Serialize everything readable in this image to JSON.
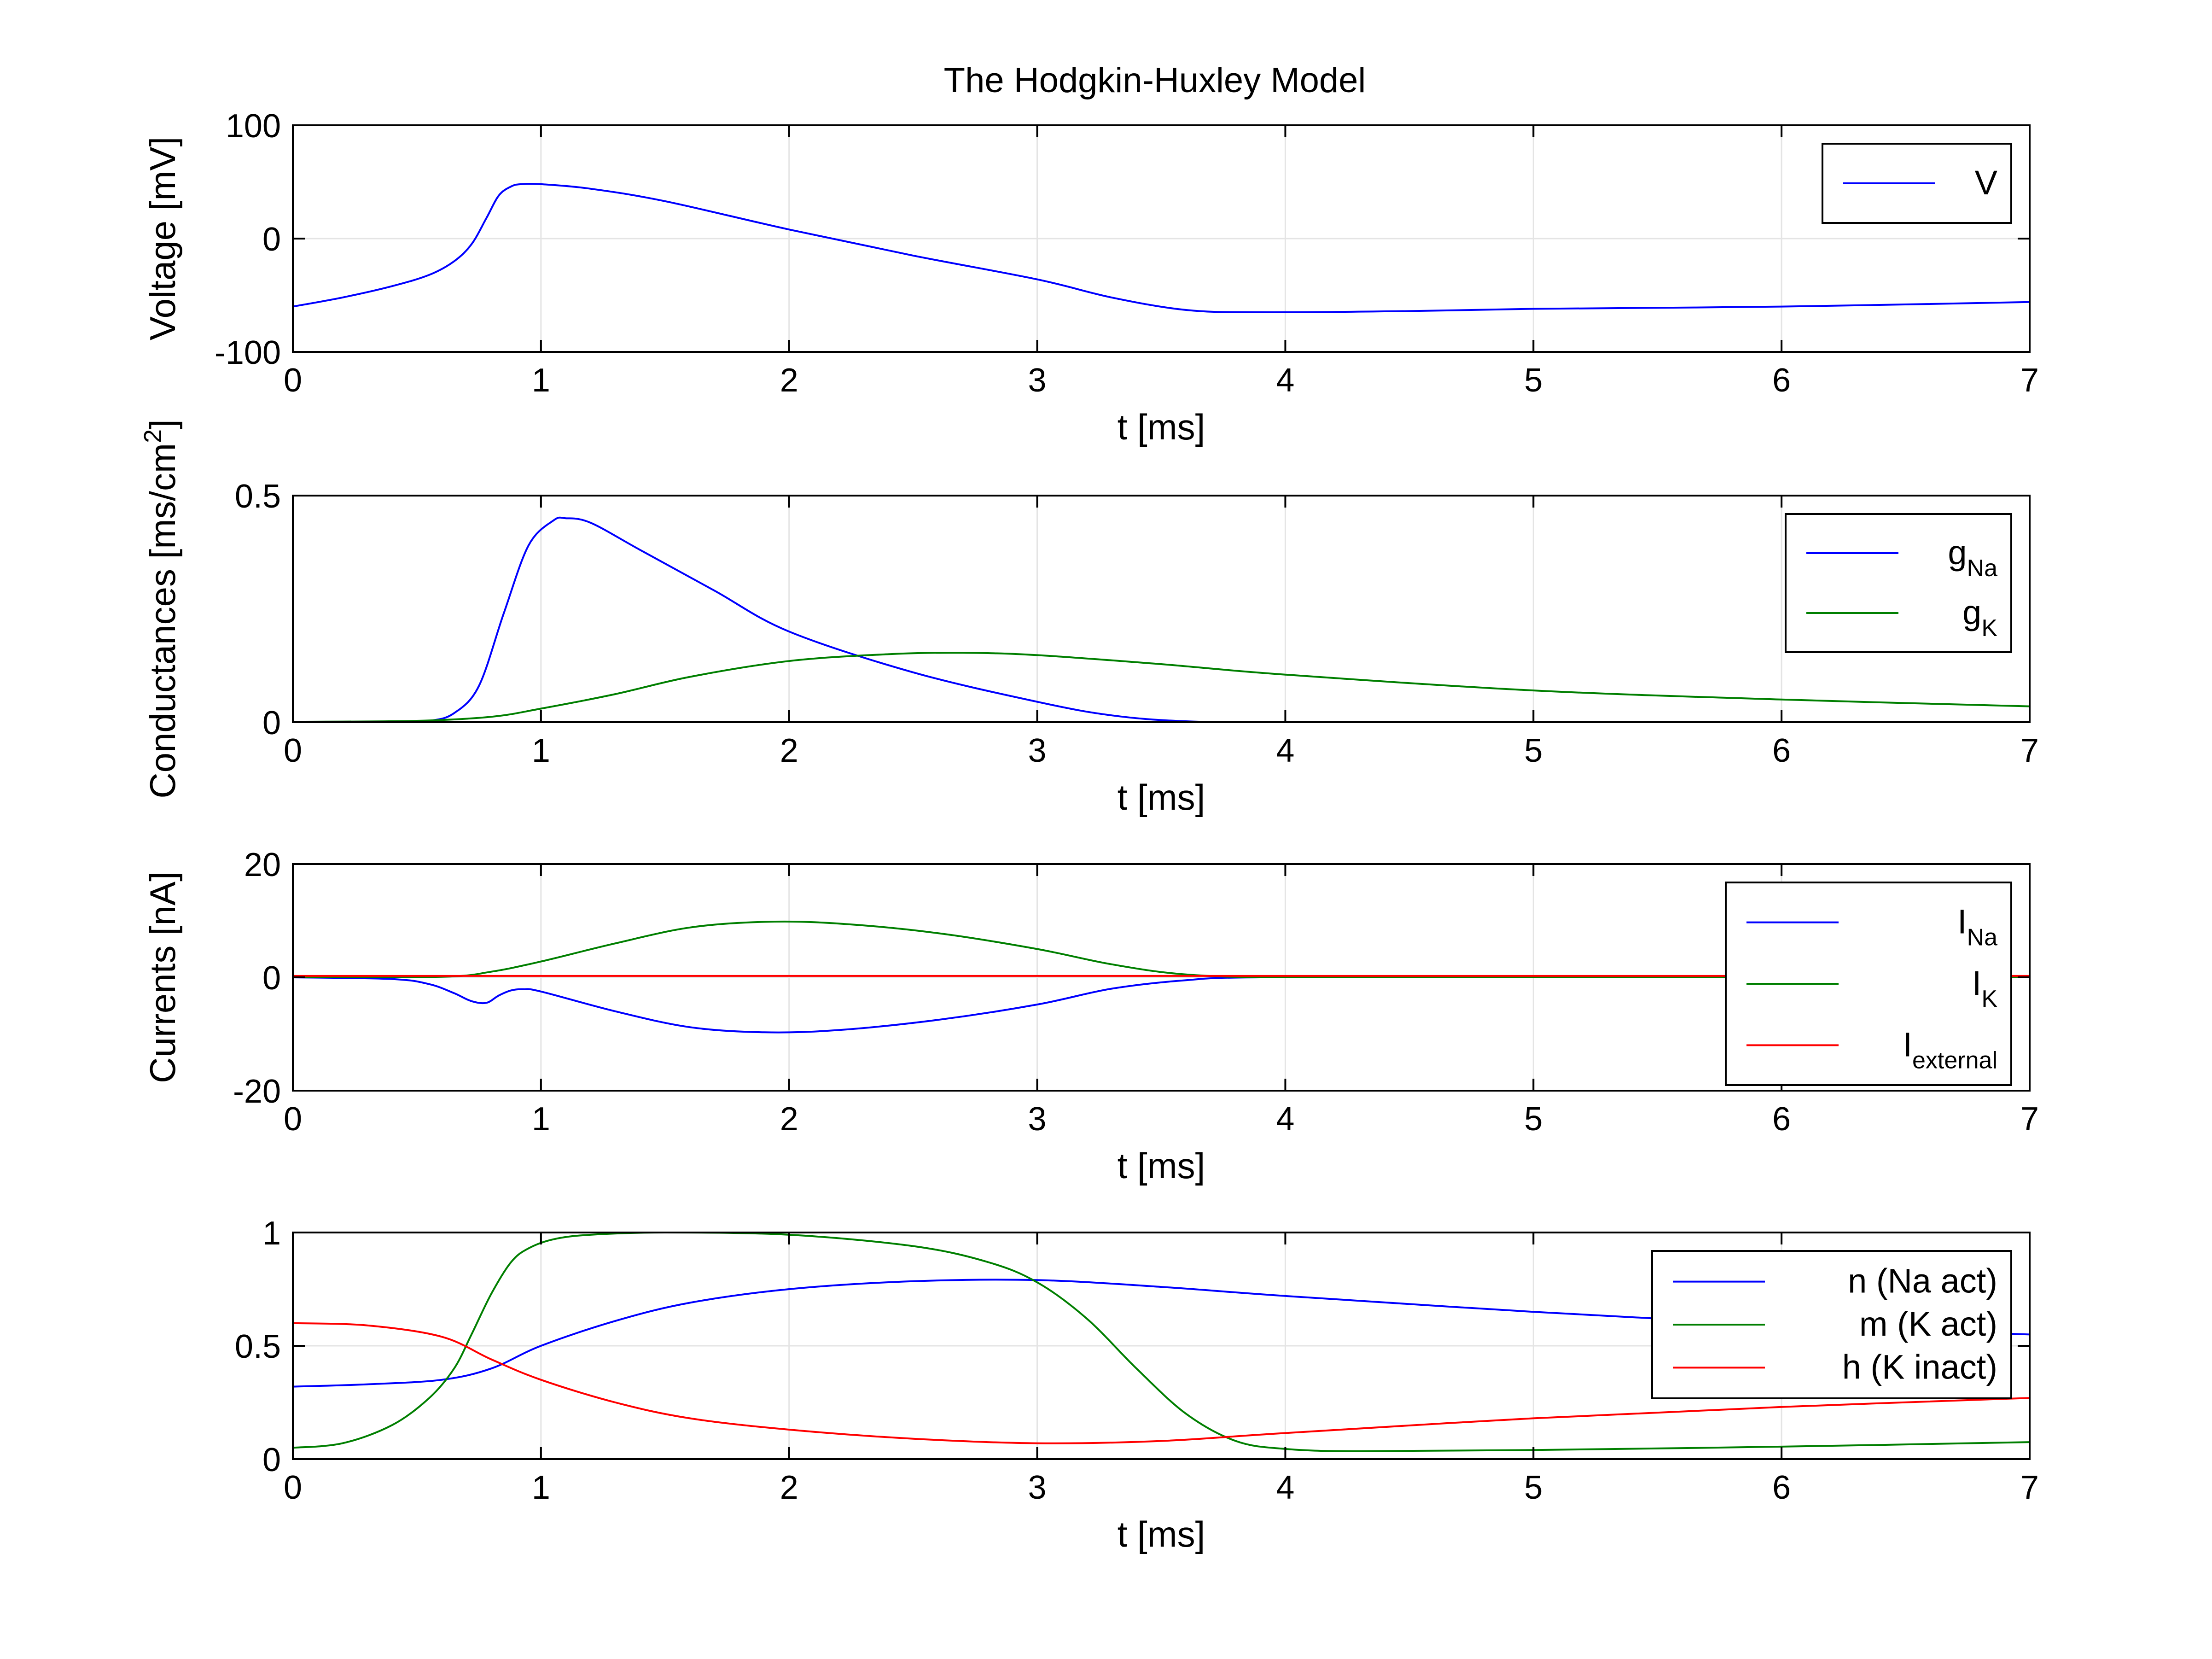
{
  "figure": {
    "title": "The Hodgkin-Huxley Model"
  },
  "chart_data": [
    {
      "type": "line",
      "xlabel": "t [ms]",
      "ylabel": "Voltage [mV]",
      "xlim": [
        0,
        7
      ],
      "ylim": [
        -100,
        100
      ],
      "xticks": [
        "0",
        "1",
        "2",
        "3",
        "4",
        "5",
        "6",
        "7"
      ],
      "yticks": [
        "-100",
        "0",
        "100"
      ],
      "ytick_values": [
        -100,
        0,
        100
      ],
      "grid": true,
      "legend": {
        "placement": "top-right"
      },
      "series": [
        {
          "name": "V",
          "label_main": "V",
          "label_sub": "",
          "color": "#0000ff",
          "x": [
            0,
            0.2,
            0.4,
            0.55,
            0.65,
            0.72,
            0.78,
            0.83,
            0.88,
            0.92,
            1.0,
            1.2,
            1.5,
            2.0,
            2.5,
            3.0,
            3.3,
            3.6,
            3.9,
            4.5,
            5.0,
            6.0,
            7.0
          ],
          "y": [
            -60,
            -52,
            -42,
            -32,
            -20,
            -5,
            18,
            38,
            46,
            48,
            48,
            44,
            33,
            8,
            -15,
            -36,
            -52,
            -63,
            -65,
            -64,
            -62,
            -60,
            -56
          ]
        }
      ]
    },
    {
      "type": "line",
      "xlabel": "t [ms]",
      "ylabel_main": "Conductances [ms/cm",
      "ylabel_sup": "2",
      "ylabel_end": "]",
      "xlim": [
        0,
        7
      ],
      "ylim": [
        0,
        0.5
      ],
      "xticks": [
        "0",
        "1",
        "2",
        "3",
        "4",
        "5",
        "6",
        "7"
      ],
      "yticks": [
        "0",
        "0.5"
      ],
      "ytick_values": [
        0,
        0.5
      ],
      "grid": true,
      "legend": {
        "placement": "top-right"
      },
      "series": [
        {
          "name": "gNa",
          "label_main": "g",
          "label_sub": "Na",
          "color": "#0000ff",
          "x": [
            0,
            0.4,
            0.55,
            0.65,
            0.75,
            0.85,
            0.95,
            1.05,
            1.1,
            1.2,
            1.4,
            1.7,
            2.0,
            2.5,
            3.0,
            3.3,
            3.6,
            4.0,
            5.0,
            7.0
          ],
          "y": [
            0,
            0,
            0.003,
            0.02,
            0.08,
            0.24,
            0.39,
            0.445,
            0.45,
            0.44,
            0.38,
            0.29,
            0.2,
            0.11,
            0.045,
            0.015,
            0.002,
            0,
            0,
            0
          ]
        },
        {
          "name": "gK",
          "label_main": "g",
          "label_sub": "K",
          "color": "#007f00",
          "x": [
            0,
            0.5,
            0.8,
            1.0,
            1.3,
            1.6,
            2.0,
            2.4,
            2.7,
            3.0,
            3.5,
            4.0,
            5.0,
            6.0,
            7.0
          ],
          "y": [
            0.001,
            0.003,
            0.012,
            0.03,
            0.062,
            0.1,
            0.135,
            0.15,
            0.153,
            0.148,
            0.128,
            0.105,
            0.07,
            0.05,
            0.035
          ]
        }
      ]
    },
    {
      "type": "line",
      "xlabel": "t [ms]",
      "ylabel": "Currents [nA]",
      "xlim": [
        0,
        7
      ],
      "ylim": [
        -20,
        20
      ],
      "xticks": [
        "0",
        "1",
        "2",
        "3",
        "4",
        "5",
        "6",
        "7"
      ],
      "yticks": [
        "-20",
        "0",
        "20"
      ],
      "ytick_values": [
        -20,
        0,
        20
      ],
      "grid": true,
      "legend": {
        "placement": "top-right"
      },
      "series": [
        {
          "name": "INa",
          "label_main": "I",
          "label_sub": "Na",
          "color": "#0000ff",
          "x": [
            0,
            0.4,
            0.55,
            0.65,
            0.72,
            0.78,
            0.83,
            0.88,
            0.93,
            1.0,
            1.3,
            1.6,
            1.9,
            2.2,
            2.6,
            3.0,
            3.3,
            3.6,
            3.9,
            5.0,
            7.0
          ],
          "y": [
            0,
            -0.3,
            -1.2,
            -2.8,
            -4.2,
            -4.5,
            -3.2,
            -2.3,
            -2.1,
            -2.5,
            -6,
            -8.8,
            -9.7,
            -9.3,
            -7.5,
            -4.8,
            -2,
            -0.5,
            0,
            0,
            0
          ]
        },
        {
          "name": "IK",
          "label_main": "I",
          "label_sub": "K",
          "color": "#007f00",
          "x": [
            0,
            0.6,
            0.8,
            1.0,
            1.3,
            1.6,
            1.9,
            2.2,
            2.6,
            3.0,
            3.3,
            3.6,
            4.0,
            5.0,
            7.0
          ],
          "y": [
            0,
            0.1,
            1,
            2.8,
            6,
            8.8,
            9.8,
            9.5,
            7.8,
            5,
            2.3,
            0.5,
            0,
            0,
            0
          ]
        },
        {
          "name": "Iexternal",
          "label_main": "I",
          "label_sub": "external",
          "color": "#ff0000",
          "x": [
            0,
            7
          ],
          "y": [
            0.25,
            0.25
          ]
        }
      ]
    },
    {
      "type": "line",
      "xlabel": "t [ms]",
      "ylabel": "",
      "xlim": [
        0,
        7
      ],
      "ylim": [
        0,
        1
      ],
      "xticks": [
        "0",
        "1",
        "2",
        "3",
        "4",
        "5",
        "6",
        "7"
      ],
      "yticks": [
        "0",
        "0.5",
        "1"
      ],
      "ytick_values": [
        0,
        0.5,
        1
      ],
      "grid": true,
      "legend": {
        "placement": "top-right"
      },
      "series": [
        {
          "name": "n (Na act)",
          "label_main": "n (Na act)",
          "label_sub": "",
          "color": "#0000ff",
          "x": [
            0,
            0.3,
            0.6,
            0.8,
            1.0,
            1.3,
            1.6,
            2.0,
            2.5,
            3.0,
            3.5,
            4.0,
            5.0,
            6.0,
            7.0
          ],
          "y": [
            0.32,
            0.33,
            0.35,
            0.4,
            0.5,
            0.61,
            0.69,
            0.75,
            0.785,
            0.79,
            0.76,
            0.72,
            0.65,
            0.59,
            0.55
          ]
        },
        {
          "name": "m (K act)",
          "label_main": "m (K act)",
          "label_sub": "",
          "color": "#007f00",
          "x": [
            0,
            0.2,
            0.4,
            0.55,
            0.65,
            0.72,
            0.8,
            0.88,
            0.95,
            1.05,
            1.2,
            1.5,
            2.0,
            2.5,
            2.8,
            3.0,
            3.2,
            3.4,
            3.6,
            3.8,
            4.0,
            4.3,
            5.0,
            6.0,
            7.0
          ],
          "y": [
            0.05,
            0.07,
            0.15,
            0.27,
            0.4,
            0.55,
            0.73,
            0.87,
            0.93,
            0.97,
            0.99,
            1.0,
            0.99,
            0.94,
            0.87,
            0.78,
            0.62,
            0.4,
            0.2,
            0.08,
            0.045,
            0.035,
            0.04,
            0.055,
            0.075
          ]
        },
        {
          "name": "h (K inact)",
          "label_main": "h (K inact)",
          "label_sub": "",
          "color": "#ff0000",
          "x": [
            0,
            0.3,
            0.6,
            0.8,
            1.0,
            1.3,
            1.6,
            2.0,
            2.5,
            3.0,
            3.5,
            4.0,
            5.0,
            6.0,
            7.0
          ],
          "y": [
            0.6,
            0.59,
            0.54,
            0.44,
            0.35,
            0.25,
            0.18,
            0.13,
            0.09,
            0.07,
            0.08,
            0.115,
            0.18,
            0.23,
            0.27
          ]
        }
      ]
    }
  ]
}
